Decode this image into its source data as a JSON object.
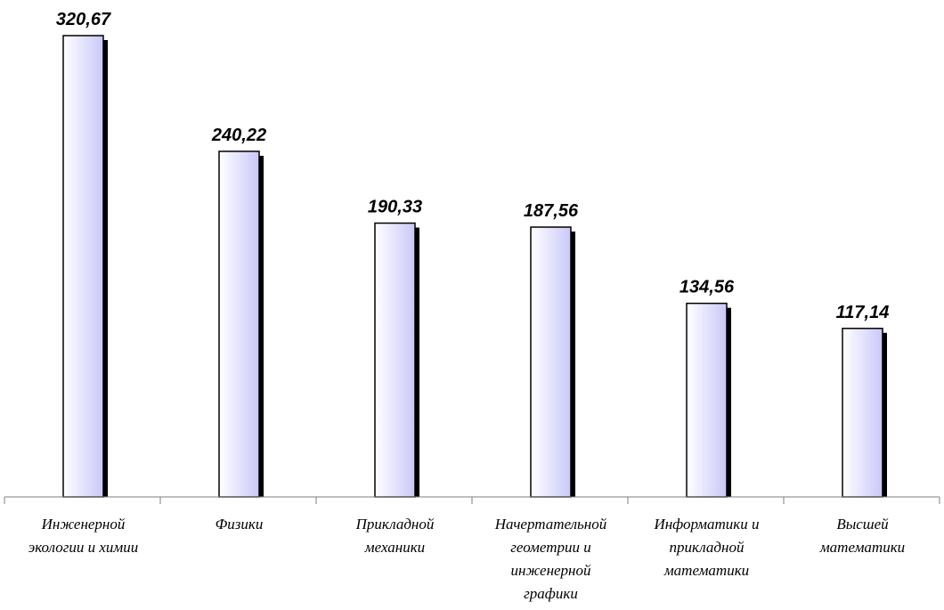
{
  "chart_data": {
    "type": "bar",
    "title": "",
    "xlabel": "",
    "ylabel": "",
    "categories": [
      "Инженерной\nэкологии и химии",
      "Физики",
      "Прикладной\nмеханики",
      "Начертательной\nгеометрии и\nинженерной\nграфики",
      "Информатики и\nприкладной\nматематики",
      "Высшей\nматематики"
    ],
    "values": [
      320.67,
      240.22,
      190.33,
      187.56,
      134.56,
      117.14
    ],
    "value_labels": [
      "320,67",
      "240,22",
      "190,33",
      "187,56",
      "134,56",
      "117,14"
    ],
    "ylim": [
      0,
      320.67
    ],
    "grid": false,
    "legend": "none",
    "colors": {
      "bar_fill_light": "#ffffff",
      "bar_fill_dark": "#c8c8f8",
      "bar_stroke": "#000000",
      "bar_shadow": "#000000",
      "axis": "#7f7f7f"
    }
  }
}
